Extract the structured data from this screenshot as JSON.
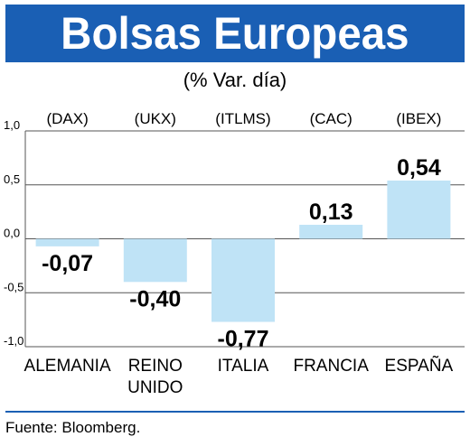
{
  "title": "Bolsas Europeas",
  "subtitle": "(% Var. día)",
  "source": "Fuente: Bloomberg.",
  "colors": {
    "bar": "#bfe3f6",
    "title_bg": "#1a5fb4",
    "grid": "#555555"
  },
  "chart_data": {
    "type": "bar",
    "categories": [
      "ALEMANIA",
      "REINO UNIDO",
      "ITALIA",
      "FRANCIA",
      "ESPAÑA"
    ],
    "category_lines": [
      [
        "ALEMANIA"
      ],
      [
        "REINO",
        "UNIDO"
      ],
      [
        "ITALIA"
      ],
      [
        "FRANCIA"
      ],
      [
        "ESPAÑA"
      ]
    ],
    "index_codes": [
      "(DAX)",
      "(UKX)",
      "(ITLMS)",
      "(CAC)",
      "(IBEX)"
    ],
    "values": [
      -0.07,
      -0.4,
      -0.77,
      0.13,
      0.54
    ],
    "value_labels": [
      "-0,07",
      "-0,40",
      "-0,77",
      "0,13",
      "0,54"
    ],
    "yticks": [
      1.0,
      0.5,
      0.0,
      -0.5,
      -1.0
    ],
    "ytick_labels": [
      "1,0",
      "0,5",
      "0,0",
      "-0,5",
      "-1,0"
    ],
    "ylim": [
      -1.0,
      1.0
    ],
    "grid": true
  }
}
